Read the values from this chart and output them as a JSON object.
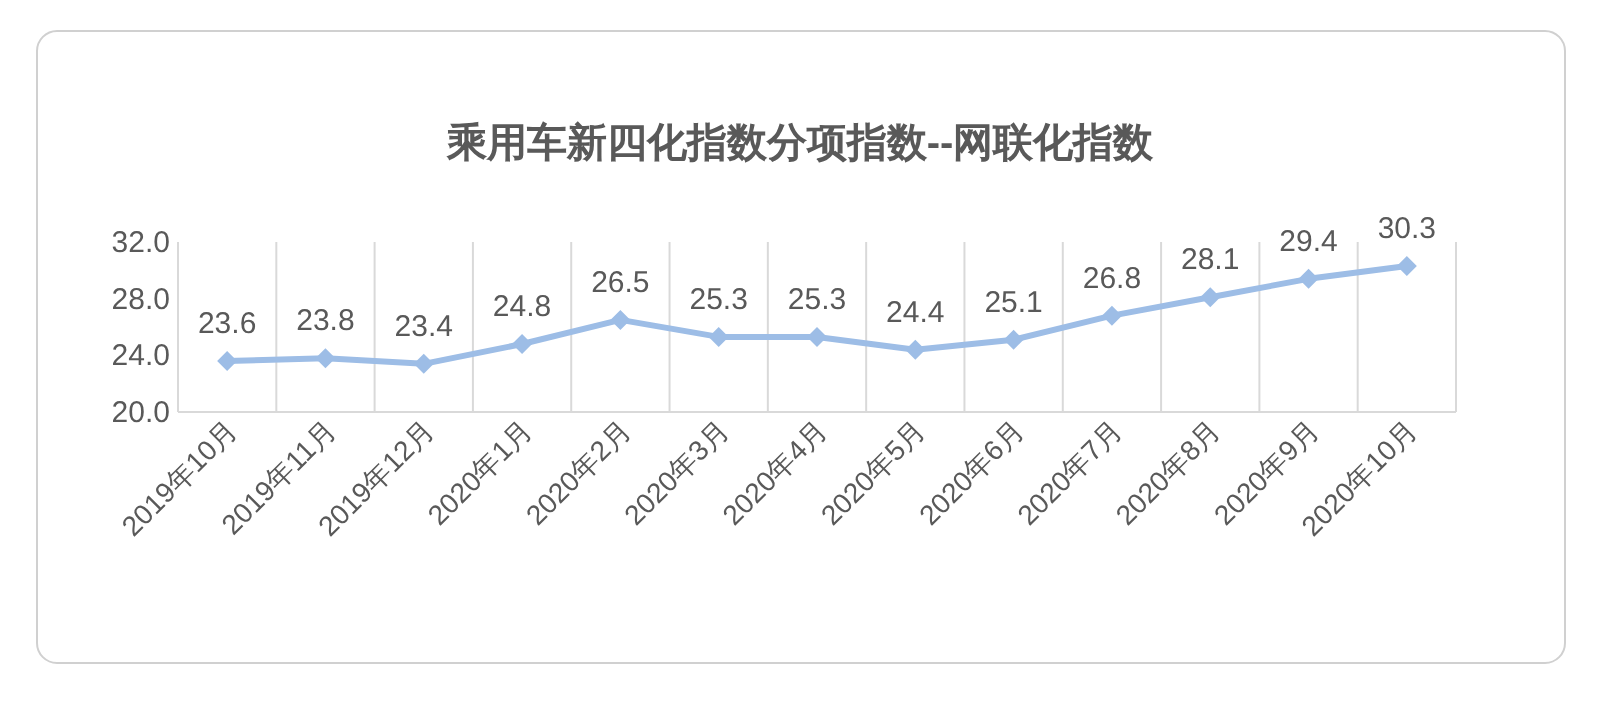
{
  "chart_data": {
    "type": "line",
    "title": "乘用车新四化指数分项指数--网联化指数",
    "categories": [
      "2019年10月",
      "2019年11月",
      "2019年12月",
      "2020年1月",
      "2020年2月",
      "2020年3月",
      "2020年4月",
      "2020年5月",
      "2020年6月",
      "2020年7月",
      "2020年8月",
      "2020年9月",
      "2020年10月"
    ],
    "series": [
      {
        "color": "#9dbde6",
        "values": [
          23.6,
          23.8,
          23.4,
          24.8,
          26.5,
          25.3,
          25.3,
          24.4,
          25.1,
          26.8,
          28.1,
          29.4,
          30.3
        ]
      }
    ],
    "ylim": [
      20,
      32
    ],
    "yticks": [
      {
        "value": 20,
        "label": "20.0"
      },
      {
        "value": 24,
        "label": "24.0"
      },
      {
        "value": 28,
        "label": "28.0"
      },
      {
        "value": 32,
        "label": "32.0"
      }
    ],
    "grid": "x",
    "marker": "diamond",
    "line_style": "solid",
    "data_labels": true
  }
}
